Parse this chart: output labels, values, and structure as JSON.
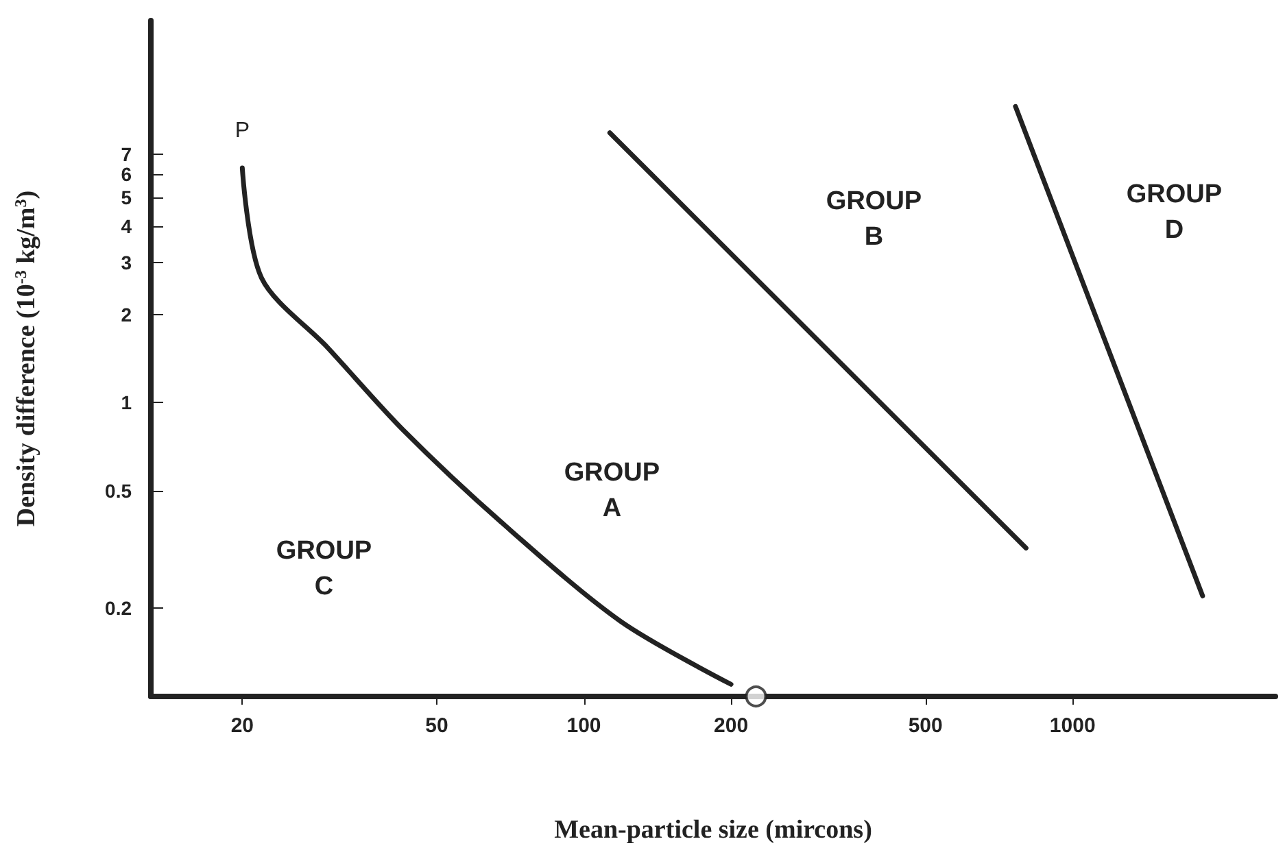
{
  "chart_data": {
    "type": "line",
    "xlabel": "Mean-particle size (mircons)",
    "ylabel": "Density difference (10$^{-3}$ kg/m$^{3}$)",
    "log": "xy",
    "grid": false,
    "marker": "none",
    "line_style": "solid",
    "xlim": [
      13,
      2600
    ],
    "xticks": [
      20,
      50,
      100,
      200,
      500,
      1000
    ],
    "ylim": [
      0.1,
      20
    ],
    "yticks": [
      0.2,
      0.5,
      1,
      2,
      3,
      4,
      5,
      6,
      7
    ],
    "series": [
      {
        "color": "#222222",
        "x": [
          20,
          21.9,
          29.9,
          42.6,
          68,
          119,
          200
        ],
        "values": [
          6.3,
          2.66,
          1.54,
          0.81,
          0.39,
          0.18,
          0.11
        ]
      },
      {
        "color": "#222222",
        "x": [
          113,
          803
        ],
        "values": [
          8.3,
          0.32
        ]
      },
      {
        "color": "#222222",
        "x": [
          764,
          1845
        ],
        "values": [
          10.2,
          0.22
        ]
      },
      {
        "type": "scatter",
        "marker": "circle",
        "color": "#222222",
        "x": [
          225
        ],
        "values": [
          0.1
        ]
      }
    ],
    "annotations": [
      {
        "text": "P",
        "x": 20,
        "y": 6.3
      },
      "GROUP\nC",
      "GROUP\nA",
      "GROUP\nB",
      "GROUP\nD"
    ]
  }
}
